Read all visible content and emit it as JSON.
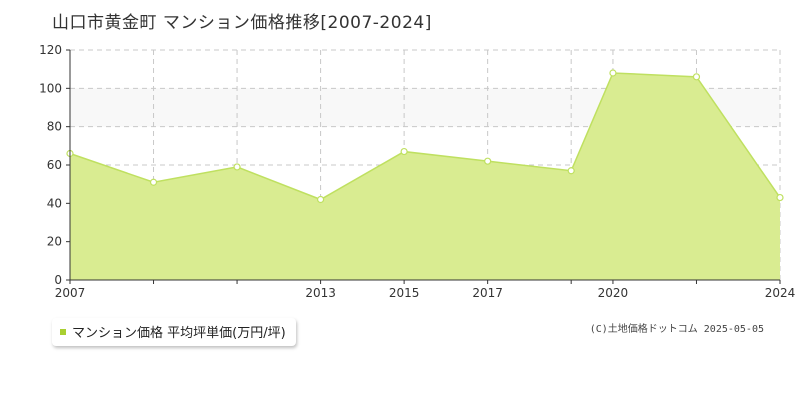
{
  "page": {
    "title": "山口市黄金町 マンション価格推移[2007-2024]",
    "copyright": "(C)土地価格ドットコム 2025-05-05"
  },
  "legend": {
    "label": "マンション価格 平均坪単価(万円/坪)"
  },
  "colors": {
    "area_fill": "#d9ec91",
    "line": "#bfe060",
    "band": "#f8f8f8",
    "grid": "#c8c8c8",
    "marker": "#a9cf31"
  },
  "chart_data": {
    "type": "area",
    "x": [
      2007,
      2009,
      2011,
      2013,
      2015,
      2017,
      2019,
      2020,
      2022,
      2024
    ],
    "series": [
      {
        "name": "マンション価格 平均坪単価(万円/坪)",
        "values": [
          66,
          51,
          59,
          42,
          67,
          62,
          57,
          108,
          106,
          43
        ]
      }
    ],
    "xlim": [
      2007,
      2024
    ],
    "ylim": [
      0,
      120
    ],
    "y_ticks": [
      0,
      20,
      40,
      60,
      80,
      100,
      120
    ],
    "x_tick_labels": [
      "2007",
      "2013",
      "2015",
      "2017",
      "2020",
      "2024"
    ],
    "x_grid_at": [
      2007,
      2009,
      2011,
      2013,
      2015,
      2017,
      2019,
      2020,
      2022,
      2024
    ],
    "highlight_band": [
      80,
      100
    ],
    "grid": true,
    "legend_position": "bottom-left"
  }
}
